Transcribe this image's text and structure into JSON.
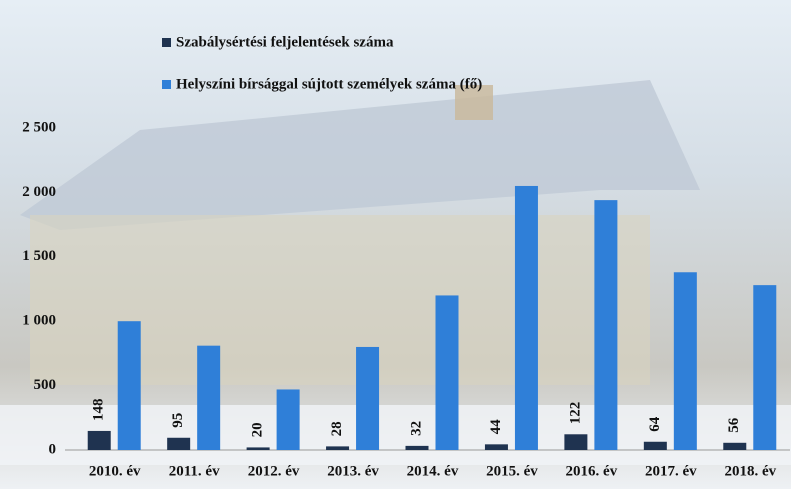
{
  "chart_data": {
    "type": "bar",
    "categories": [
      "2010. év",
      "2011. év",
      "2012. év",
      "2013. év",
      "2014. év",
      "2015. év",
      "2016. év",
      "2017. év",
      "2018. év"
    ],
    "series": [
      {
        "name": "Szabálysértési feljelentések száma",
        "color": "#1f3350",
        "values": [
          148,
          95,
          20,
          28,
          32,
          44,
          122,
          64,
          56
        ]
      },
      {
        "name": "Helyszíni bírsággal sújtott személyek száma (fő)",
        "color": "#2f7fd8",
        "values": [
          1000,
          810,
          470,
          800,
          1200,
          2050,
          1940,
          1380,
          1280
        ]
      }
    ],
    "ylim": [
      0,
      2500
    ],
    "yticks": [
      0,
      500,
      {
        "value": 1000,
        "label": "1 000"
      },
      {
        "value": 1500,
        "label": "1 500"
      },
      {
        "value": 2000,
        "label": "2 000"
      },
      {
        "value": 2500,
        "label": "2 500"
      }
    ],
    "grid": false
  }
}
